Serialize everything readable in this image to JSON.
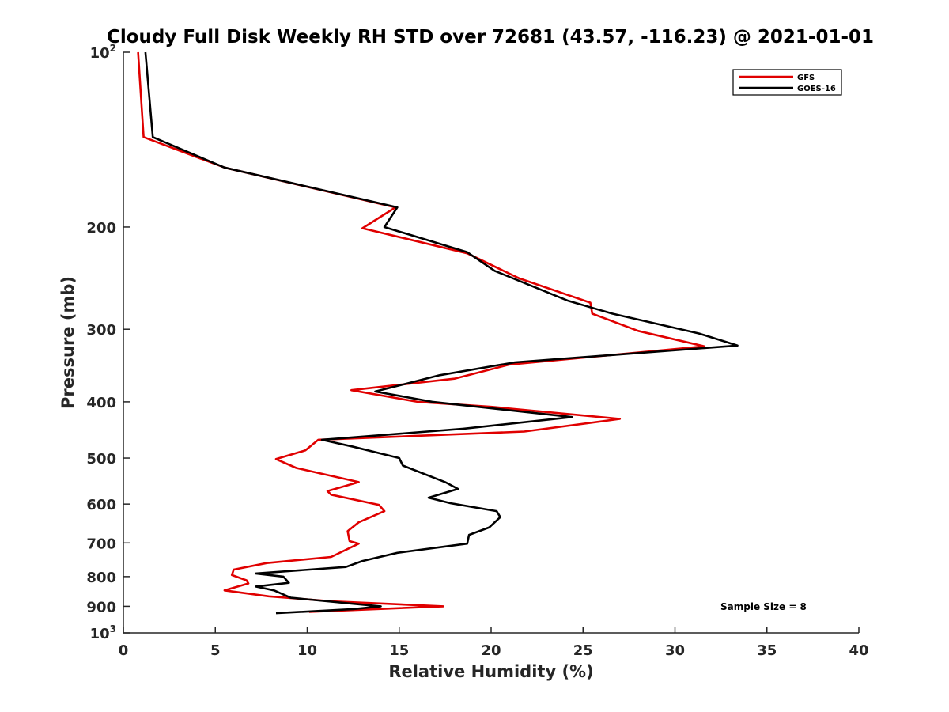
{
  "chart_data": {
    "type": "line",
    "title": "Cloudy Full Disk Weekly RH STD over 72681 (43.57, -116.23) @ 2021-01-01",
    "xlabel": "Relative Humidity (%)",
    "ylabel": "Pressure (mb)",
    "xlim": [
      0,
      40
    ],
    "ylim": [
      100,
      1000
    ],
    "y_scale": "log",
    "y_reversed": true,
    "grid": false,
    "legend_position": "top-right",
    "x_ticks": [
      "0",
      "5",
      "10",
      "15",
      "20",
      "25",
      "30",
      "35",
      "40"
    ],
    "y_ticks": [
      {
        "value": 100,
        "base": "10",
        "exp": "2"
      },
      {
        "value": 200,
        "label": "200"
      },
      {
        "value": 300,
        "label": "300"
      },
      {
        "value": 400,
        "label": "400"
      },
      {
        "value": 500,
        "label": "500"
      },
      {
        "value": 600,
        "label": "600"
      },
      {
        "value": 700,
        "label": "700"
      },
      {
        "value": 800,
        "label": "800"
      },
      {
        "value": 900,
        "label": "900"
      },
      {
        "value": 1000,
        "base": "10",
        "exp": "3"
      }
    ],
    "annotation": "Sample Size = 8",
    "series": [
      {
        "name": "GFS",
        "color": "#e00000",
        "points": [
          [
            0.8,
            100
          ],
          [
            1.1,
            140
          ],
          [
            5.5,
            158
          ],
          [
            14.8,
            185
          ],
          [
            13.0,
            201
          ],
          [
            18.7,
            222
          ],
          [
            21.5,
            245
          ],
          [
            25.4,
            270
          ],
          [
            25.5,
            282
          ],
          [
            28.0,
            302
          ],
          [
            31.6,
            321
          ],
          [
            21.0,
            345
          ],
          [
            18.0,
            365
          ],
          [
            12.4,
            382
          ],
          [
            16.0,
            400
          ],
          [
            20.0,
            408
          ],
          [
            27.0,
            428
          ],
          [
            21.8,
            450
          ],
          [
            10.6,
            465
          ],
          [
            9.9,
            485
          ],
          [
            8.3,
            502
          ],
          [
            9.4,
            520
          ],
          [
            12.8,
            550
          ],
          [
            11.1,
            570
          ],
          [
            11.3,
            578
          ],
          [
            13.9,
            602
          ],
          [
            14.2,
            617
          ],
          [
            12.8,
            645
          ],
          [
            12.2,
            668
          ],
          [
            12.3,
            695
          ],
          [
            12.8,
            702
          ],
          [
            11.3,
            740
          ],
          [
            7.8,
            758
          ],
          [
            6.0,
            778
          ],
          [
            5.9,
            795
          ],
          [
            6.7,
            812
          ],
          [
            6.8,
            822
          ],
          [
            5.5,
            845
          ],
          [
            7.9,
            865
          ],
          [
            11.3,
            882
          ],
          [
            17.4,
            900
          ],
          [
            10.1,
            920
          ]
        ]
      },
      {
        "name": "GOES-16",
        "color": "#000000",
        "points": [
          [
            1.2,
            100
          ],
          [
            1.6,
            140
          ],
          [
            5.5,
            158
          ],
          [
            14.9,
            185
          ],
          [
            14.2,
            200
          ],
          [
            18.7,
            221
          ],
          [
            20.2,
            238
          ],
          [
            24.2,
            268
          ],
          [
            26.6,
            282
          ],
          [
            31.3,
            305
          ],
          [
            33.4,
            320
          ],
          [
            21.3,
            342
          ],
          [
            17.2,
            360
          ],
          [
            13.7,
            384
          ],
          [
            16.8,
            400
          ],
          [
            24.4,
            425
          ],
          [
            18.5,
            445
          ],
          [
            10.8,
            465
          ],
          [
            12.5,
            478
          ],
          [
            15.0,
            500
          ],
          [
            15.2,
            515
          ],
          [
            17.5,
            550
          ],
          [
            18.2,
            565
          ],
          [
            16.6,
            585
          ],
          [
            17.8,
            598
          ],
          [
            20.3,
            617
          ],
          [
            20.5,
            632
          ],
          [
            19.9,
            658
          ],
          [
            18.8,
            678
          ],
          [
            18.7,
            702
          ],
          [
            14.9,
            728
          ],
          [
            13.0,
            752
          ],
          [
            12.1,
            770
          ],
          [
            7.2,
            790
          ],
          [
            8.7,
            800
          ],
          [
            9.0,
            820
          ],
          [
            7.2,
            832
          ],
          [
            8.2,
            845
          ],
          [
            9.1,
            870
          ],
          [
            12.4,
            890
          ],
          [
            14.0,
            900
          ],
          [
            12.5,
            910
          ],
          [
            8.3,
            925
          ]
        ]
      }
    ]
  }
}
